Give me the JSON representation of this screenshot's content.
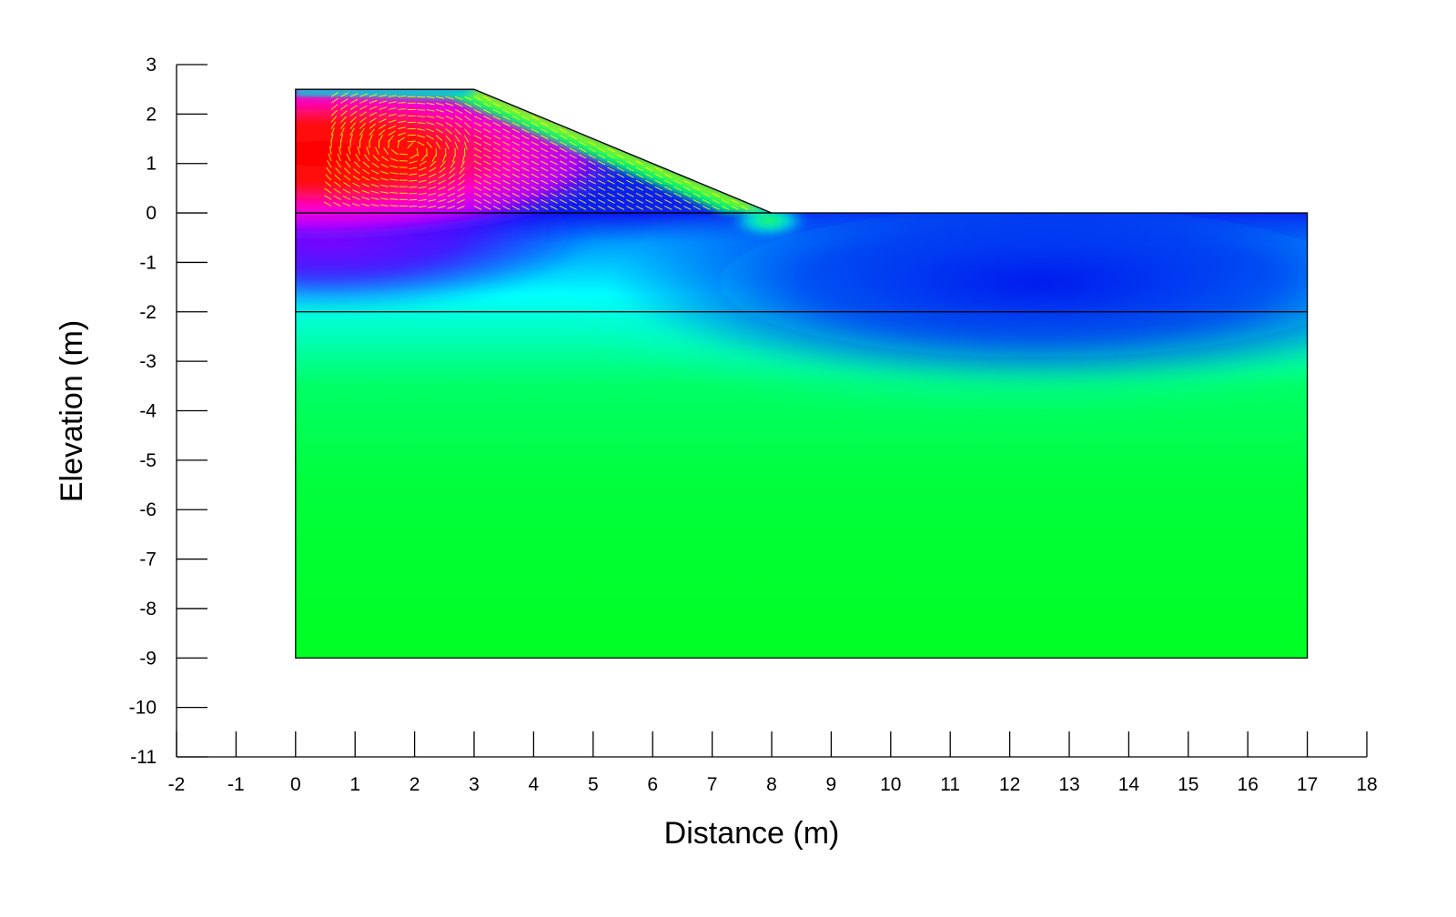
{
  "chart_data": {
    "type": "heatmap",
    "title": "",
    "xlabel": "Distance (m)",
    "ylabel": "Elevation (m)",
    "xlim": [
      -2,
      18
    ],
    "ylim": [
      -11,
      3
    ],
    "x_ticks": [
      -2,
      -1,
      0,
      1,
      2,
      3,
      4,
      5,
      6,
      7,
      8,
      9,
      10,
      11,
      12,
      13,
      14,
      15,
      16,
      17,
      18
    ],
    "y_ticks": [
      3,
      2,
      1,
      0,
      -1,
      -2,
      -3,
      -4,
      -5,
      -6,
      -7,
      -8,
      -9,
      -10,
      -11
    ],
    "grid": false,
    "legend": "none",
    "domain_outline": [
      [
        0,
        2.5
      ],
      [
        3,
        2.5
      ],
      [
        8,
        0
      ],
      [
        17,
        0
      ],
      [
        17,
        -9
      ],
      [
        0,
        -9
      ]
    ],
    "layer_boundaries": [
      {
        "x": [
          0,
          8
        ],
        "y": [
          0,
          0
        ]
      },
      {
        "x": [
          0,
          17
        ],
        "y": [
          -2,
          -2
        ]
      }
    ],
    "contour_colors": [
      "#ff0000",
      "#ff00ff",
      "#8a00ff",
      "#0000ff",
      "#00a0ff",
      "#00ffff",
      "#00ff3a",
      "#ffff00"
    ],
    "vector_color": "#ffff00",
    "boundary_color": "#000000"
  }
}
